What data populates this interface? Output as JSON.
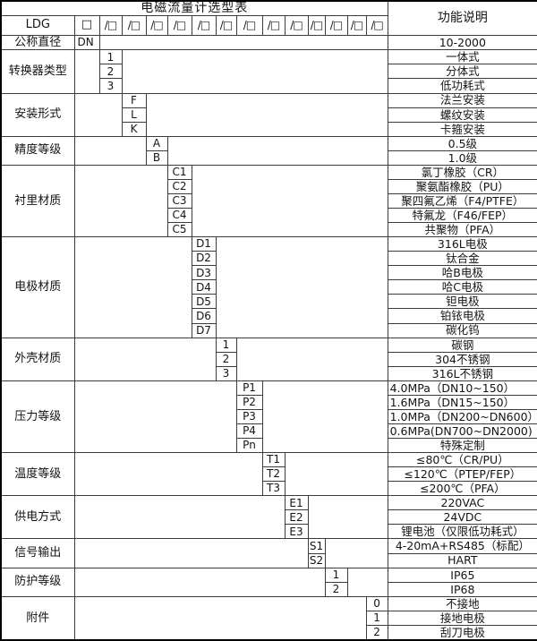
{
  "title": "电磁流量计选型表",
  "function_header": "功能说明",
  "model": {
    "prefix": "LDG",
    "box": "□",
    "slot": "/□",
    "slot_count": 13
  },
  "columns": {
    "widths": [
      82,
      28,
      25,
      27,
      24,
      27,
      27,
      23,
      29,
      25,
      26,
      19,
      25,
      21,
      24,
      168
    ]
  },
  "colors": {
    "border_inner": "#3c3c3c",
    "border_outer": "#000000",
    "background": "#ffffff",
    "text": "#141414"
  },
  "sections": [
    {
      "label": "公称直径",
      "code_col": 1,
      "rows": [
        {
          "code": "DN",
          "desc": "10-2000"
        }
      ]
    },
    {
      "label": "转换器类型",
      "code_col": 2,
      "rows": [
        {
          "code": "1",
          "desc": "一体式"
        },
        {
          "code": "2",
          "desc": "分体式"
        },
        {
          "code": "3",
          "desc": "低功耗式"
        }
      ]
    },
    {
      "label": "安装形式",
      "code_col": 3,
      "rows": [
        {
          "code": "F",
          "desc": "法兰安装"
        },
        {
          "code": "L",
          "desc": "螺纹安装"
        },
        {
          "code": "K",
          "desc": "卡箍安装"
        }
      ]
    },
    {
      "label": "精度等级",
      "code_col": 4,
      "rows": [
        {
          "code": "A",
          "desc": "0.5级"
        },
        {
          "code": "B",
          "desc": "1.0级"
        }
      ]
    },
    {
      "label": "衬里材质",
      "code_col": 5,
      "rows": [
        {
          "code": "C1",
          "desc": "氯丁橡胶（CR）"
        },
        {
          "code": "C2",
          "desc": "聚氨酯橡胶（PU）"
        },
        {
          "code": "C3",
          "desc": "聚四氟乙烯（F4/PTFE）"
        },
        {
          "code": "C4",
          "desc": "特氟龙（F46/FEP）"
        },
        {
          "code": "C5",
          "desc": "共聚物（PFA）"
        }
      ]
    },
    {
      "label": "电极材质",
      "code_col": 6,
      "rows": [
        {
          "code": "D1",
          "desc": "316L电极"
        },
        {
          "code": "D2",
          "desc": "钛合金"
        },
        {
          "code": "D3",
          "desc": "哈B电极"
        },
        {
          "code": "D4",
          "desc": "哈C电极"
        },
        {
          "code": "D5",
          "desc": "钽电极"
        },
        {
          "code": "D6",
          "desc": "铂铱电极"
        },
        {
          "code": "D7",
          "desc": "碳化钨"
        }
      ]
    },
    {
      "label": "外壳材质",
      "code_col": 7,
      "rows": [
        {
          "code": "1",
          "desc": "碳钢"
        },
        {
          "code": "2",
          "desc": "304不锈钢"
        },
        {
          "code": "3",
          "desc": "316L不锈钢"
        }
      ]
    },
    {
      "label": "压力等级",
      "code_col": 8,
      "rows": [
        {
          "code": "P1",
          "desc": "4.0MPa（DN10~150）",
          "desc_align": "left"
        },
        {
          "code": "P2",
          "desc": "1.6MPa（DN15~150）",
          "desc_align": "left"
        },
        {
          "code": "P3",
          "desc": "1.0MPa（DN200~DN600）",
          "desc_align": "left"
        },
        {
          "code": "P4",
          "desc": "0.6MPa(DN700~DN2000)",
          "desc_align": "left"
        },
        {
          "code": "Pn",
          "desc": "特殊定制"
        }
      ]
    },
    {
      "label": "温度等级",
      "code_col": 9,
      "rows": [
        {
          "code": "T1",
          "desc": "≤80℃（CR/PU）"
        },
        {
          "code": "T2",
          "desc": "≤120℃（PTEP/FEP）"
        },
        {
          "code": "T3",
          "desc": "≤200℃（PFA）"
        }
      ]
    },
    {
      "label": "供电方式",
      "code_col": 10,
      "rows": [
        {
          "code": "E1",
          "desc": "220VAC"
        },
        {
          "code": "E2",
          "desc": "24VDC"
        },
        {
          "code": "E3",
          "desc": "锂电池（仅限低功耗式）"
        }
      ]
    },
    {
      "label": "信号输出",
      "code_col": 11,
      "rows": [
        {
          "code": "S1",
          "desc": "4-20mA+RS485（标配）"
        },
        {
          "code": "S2",
          "desc": "HART"
        }
      ]
    },
    {
      "label": "防护等级",
      "code_col": 12,
      "rows": [
        {
          "code": "1",
          "desc": "IP65"
        },
        {
          "code": "2",
          "desc": "IP68"
        }
      ]
    },
    {
      "label": "附件",
      "code_col": 14,
      "rows": [
        {
          "code": "0",
          "desc": "不接地"
        },
        {
          "code": "1",
          "desc": "接地电极"
        },
        {
          "code": "2",
          "desc": "刮刀电极"
        }
      ]
    }
  ]
}
